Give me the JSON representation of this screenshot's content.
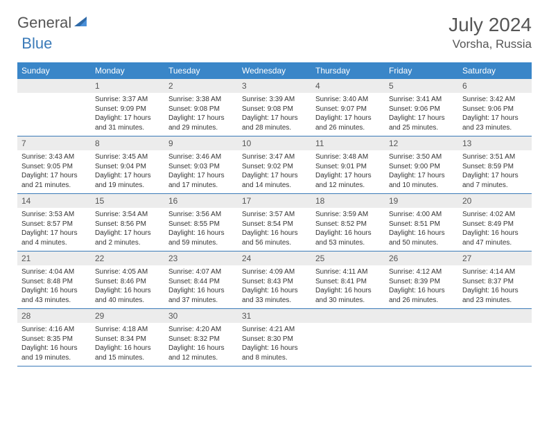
{
  "logo": {
    "part1": "General",
    "part2": "Blue"
  },
  "title": "July 2024",
  "location": "Vorsha, Russia",
  "dow": [
    "Sunday",
    "Monday",
    "Tuesday",
    "Wednesday",
    "Thursday",
    "Friday",
    "Saturday"
  ],
  "colors": {
    "header_bg": "#3a86c8",
    "divider": "#3a7ab8",
    "daynum_bg": "#ececec",
    "text": "#333333"
  },
  "weeks": [
    [
      {
        "n": "",
        "lines": []
      },
      {
        "n": "1",
        "lines": [
          "Sunrise: 3:37 AM",
          "Sunset: 9:09 PM",
          "Daylight: 17 hours",
          "and 31 minutes."
        ]
      },
      {
        "n": "2",
        "lines": [
          "Sunrise: 3:38 AM",
          "Sunset: 9:08 PM",
          "Daylight: 17 hours",
          "and 29 minutes."
        ]
      },
      {
        "n": "3",
        "lines": [
          "Sunrise: 3:39 AM",
          "Sunset: 9:08 PM",
          "Daylight: 17 hours",
          "and 28 minutes."
        ]
      },
      {
        "n": "4",
        "lines": [
          "Sunrise: 3:40 AM",
          "Sunset: 9:07 PM",
          "Daylight: 17 hours",
          "and 26 minutes."
        ]
      },
      {
        "n": "5",
        "lines": [
          "Sunrise: 3:41 AM",
          "Sunset: 9:06 PM",
          "Daylight: 17 hours",
          "and 25 minutes."
        ]
      },
      {
        "n": "6",
        "lines": [
          "Sunrise: 3:42 AM",
          "Sunset: 9:06 PM",
          "Daylight: 17 hours",
          "and 23 minutes."
        ]
      }
    ],
    [
      {
        "n": "7",
        "lines": [
          "Sunrise: 3:43 AM",
          "Sunset: 9:05 PM",
          "Daylight: 17 hours",
          "and 21 minutes."
        ]
      },
      {
        "n": "8",
        "lines": [
          "Sunrise: 3:45 AM",
          "Sunset: 9:04 PM",
          "Daylight: 17 hours",
          "and 19 minutes."
        ]
      },
      {
        "n": "9",
        "lines": [
          "Sunrise: 3:46 AM",
          "Sunset: 9:03 PM",
          "Daylight: 17 hours",
          "and 17 minutes."
        ]
      },
      {
        "n": "10",
        "lines": [
          "Sunrise: 3:47 AM",
          "Sunset: 9:02 PM",
          "Daylight: 17 hours",
          "and 14 minutes."
        ]
      },
      {
        "n": "11",
        "lines": [
          "Sunrise: 3:48 AM",
          "Sunset: 9:01 PM",
          "Daylight: 17 hours",
          "and 12 minutes."
        ]
      },
      {
        "n": "12",
        "lines": [
          "Sunrise: 3:50 AM",
          "Sunset: 9:00 PM",
          "Daylight: 17 hours",
          "and 10 minutes."
        ]
      },
      {
        "n": "13",
        "lines": [
          "Sunrise: 3:51 AM",
          "Sunset: 8:59 PM",
          "Daylight: 17 hours",
          "and 7 minutes."
        ]
      }
    ],
    [
      {
        "n": "14",
        "lines": [
          "Sunrise: 3:53 AM",
          "Sunset: 8:57 PM",
          "Daylight: 17 hours",
          "and 4 minutes."
        ]
      },
      {
        "n": "15",
        "lines": [
          "Sunrise: 3:54 AM",
          "Sunset: 8:56 PM",
          "Daylight: 17 hours",
          "and 2 minutes."
        ]
      },
      {
        "n": "16",
        "lines": [
          "Sunrise: 3:56 AM",
          "Sunset: 8:55 PM",
          "Daylight: 16 hours",
          "and 59 minutes."
        ]
      },
      {
        "n": "17",
        "lines": [
          "Sunrise: 3:57 AM",
          "Sunset: 8:54 PM",
          "Daylight: 16 hours",
          "and 56 minutes."
        ]
      },
      {
        "n": "18",
        "lines": [
          "Sunrise: 3:59 AM",
          "Sunset: 8:52 PM",
          "Daylight: 16 hours",
          "and 53 minutes."
        ]
      },
      {
        "n": "19",
        "lines": [
          "Sunrise: 4:00 AM",
          "Sunset: 8:51 PM",
          "Daylight: 16 hours",
          "and 50 minutes."
        ]
      },
      {
        "n": "20",
        "lines": [
          "Sunrise: 4:02 AM",
          "Sunset: 8:49 PM",
          "Daylight: 16 hours",
          "and 47 minutes."
        ]
      }
    ],
    [
      {
        "n": "21",
        "lines": [
          "Sunrise: 4:04 AM",
          "Sunset: 8:48 PM",
          "Daylight: 16 hours",
          "and 43 minutes."
        ]
      },
      {
        "n": "22",
        "lines": [
          "Sunrise: 4:05 AM",
          "Sunset: 8:46 PM",
          "Daylight: 16 hours",
          "and 40 minutes."
        ]
      },
      {
        "n": "23",
        "lines": [
          "Sunrise: 4:07 AM",
          "Sunset: 8:44 PM",
          "Daylight: 16 hours",
          "and 37 minutes."
        ]
      },
      {
        "n": "24",
        "lines": [
          "Sunrise: 4:09 AM",
          "Sunset: 8:43 PM",
          "Daylight: 16 hours",
          "and 33 minutes."
        ]
      },
      {
        "n": "25",
        "lines": [
          "Sunrise: 4:11 AM",
          "Sunset: 8:41 PM",
          "Daylight: 16 hours",
          "and 30 minutes."
        ]
      },
      {
        "n": "26",
        "lines": [
          "Sunrise: 4:12 AM",
          "Sunset: 8:39 PM",
          "Daylight: 16 hours",
          "and 26 minutes."
        ]
      },
      {
        "n": "27",
        "lines": [
          "Sunrise: 4:14 AM",
          "Sunset: 8:37 PM",
          "Daylight: 16 hours",
          "and 23 minutes."
        ]
      }
    ],
    [
      {
        "n": "28",
        "lines": [
          "Sunrise: 4:16 AM",
          "Sunset: 8:35 PM",
          "Daylight: 16 hours",
          "and 19 minutes."
        ]
      },
      {
        "n": "29",
        "lines": [
          "Sunrise: 4:18 AM",
          "Sunset: 8:34 PM",
          "Daylight: 16 hours",
          "and 15 minutes."
        ]
      },
      {
        "n": "30",
        "lines": [
          "Sunrise: 4:20 AM",
          "Sunset: 8:32 PM",
          "Daylight: 16 hours",
          "and 12 minutes."
        ]
      },
      {
        "n": "31",
        "lines": [
          "Sunrise: 4:21 AM",
          "Sunset: 8:30 PM",
          "Daylight: 16 hours",
          "and 8 minutes."
        ]
      },
      {
        "n": "",
        "lines": []
      },
      {
        "n": "",
        "lines": []
      },
      {
        "n": "",
        "lines": []
      }
    ]
  ]
}
